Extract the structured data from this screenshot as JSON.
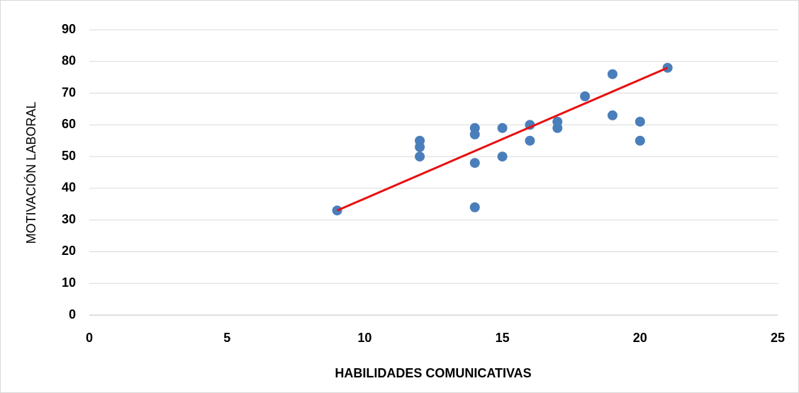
{
  "chart_data": {
    "type": "scatter",
    "x_label": "HABILIDADES  COMUNICATIVAS",
    "y_label": "MOTIVACIÓN  LABORAL",
    "x": [
      9,
      12,
      12,
      12,
      14,
      14,
      14,
      14,
      15,
      15,
      16,
      16,
      17,
      17,
      18,
      19,
      19,
      20,
      20,
      21
    ],
    "values": [
      33,
      55,
      53,
      50,
      59,
      57,
      48,
      34,
      59,
      50,
      60,
      55,
      61,
      59,
      69,
      76,
      63,
      61,
      55,
      78
    ],
    "color": "#4a7ebb",
    "trendline": {
      "x": [
        9,
        21
      ],
      "values": [
        33,
        78
      ],
      "color": "#e81010"
    },
    "xlim": [
      0,
      25
    ],
    "xticks": [
      0,
      5,
      10,
      15,
      20,
      25
    ],
    "ylim": [
      0,
      90
    ],
    "yticks": [
      0,
      10,
      20,
      30,
      40,
      50,
      60,
      70,
      80,
      90
    ],
    "grid": true
  }
}
